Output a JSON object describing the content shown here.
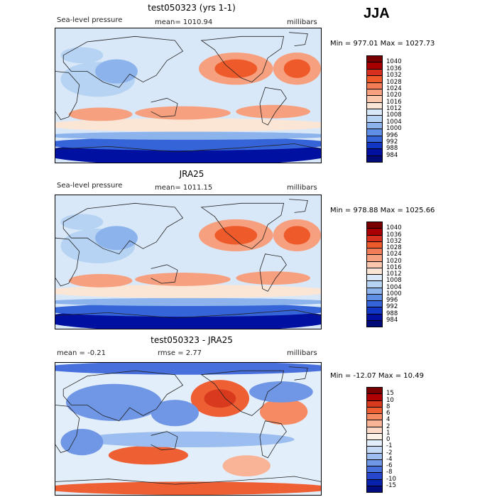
{
  "season": "JJA",
  "units": "millibars",
  "panels": [
    {
      "title": "test050323 (yrs 1-1)",
      "left_label": "Sea-level pressure",
      "center_label": "mean= 1010.94",
      "right_label": "millibars",
      "minmax": "Min = 977.01  Max = 1027.73",
      "kind": "abs",
      "colorbar_labels": [
        "1040",
        "1036",
        "1032",
        "1028",
        "1024",
        "1020",
        "1016",
        "1012",
        "1008",
        "1004",
        "1000",
        "996",
        "992",
        "988",
        "984"
      ]
    },
    {
      "title": "JRA25",
      "left_label": "Sea-level pressure",
      "center_label": "mean= 1011.15",
      "right_label": "millibars",
      "minmax": "Min = 978.88  Max = 1025.66",
      "kind": "abs",
      "colorbar_labels": [
        "1040",
        "1036",
        "1032",
        "1028",
        "1024",
        "1020",
        "1016",
        "1012",
        "1008",
        "1004",
        "1000",
        "996",
        "992",
        "988",
        "984"
      ]
    },
    {
      "title": "test050323 - JRA25",
      "left_label": "mean =   -0.21",
      "center_label": "rmse =    2.77",
      "right_label": "millibars",
      "minmax": "Min = -12.07  Max =  10.49",
      "kind": "diff",
      "colorbar_labels": [
        "15",
        "10",
        "8",
        "6",
        "4",
        "2",
        "1",
        "0",
        "-1",
        "-2",
        "-4",
        "-6",
        "-8",
        "-10",
        "-15"
      ]
    }
  ],
  "colors": {
    "abs": [
      "#7a0000",
      "#a80000",
      "#d7301f",
      "#ef5a2a",
      "#f27c55",
      "#f6a07f",
      "#fac6ac",
      "#fbe6d6",
      "#d9e8f8",
      "#b6d3f3",
      "#8cb3ec",
      "#5e8fe4",
      "#3563d8",
      "#1137c4",
      "#0010a0",
      "#000a78"
    ],
    "diff": [
      "#7a0000",
      "#b10000",
      "#d93a1e",
      "#ef5f34",
      "#f68a63",
      "#f9b497",
      "#fcd9c6",
      "#fdf0e6",
      "#e3eefb",
      "#c3d9f5",
      "#9bbdef",
      "#6f97e6",
      "#4870dc",
      "#2647cb",
      "#0822ae",
      "#000c80"
    ]
  }
}
